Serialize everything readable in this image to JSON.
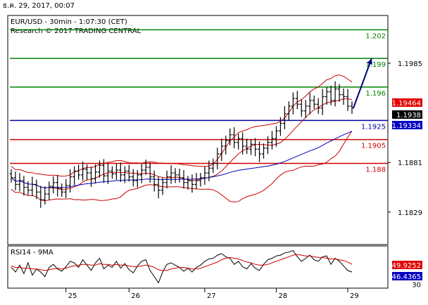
{
  "header": {
    "timestamp": "ธ.ค. 29, 2017, 00:07",
    "instrument_line": "EUR/USD - 30min - 1:07:30 (CET)",
    "research_line": "Research © 2017 TRADING CENTRAL"
  },
  "chart_data": [
    {
      "type": "candlestick",
      "title": "EUR/USD - 30min - 1:07:30 (CET)",
      "ylim": [
        1.1795,
        1.2035
      ],
      "y_ticks": [
        {
          "value": 1.1985,
          "label": "1.1985"
        },
        {
          "value": 1.1881,
          "label": "1.1881"
        },
        {
          "value": 1.1829,
          "label": "1.1829"
        }
      ],
      "x_ticks": [
        {
          "label": "25",
          "index": 13
        },
        {
          "label": "26",
          "index": 28
        },
        {
          "label": "27",
          "index": 46
        },
        {
          "label": "28",
          "index": 63
        },
        {
          "label": "29",
          "index": 80
        }
      ],
      "levels": [
        {
          "value": 1.202,
          "label": "1.202",
          "color": "#008000"
        },
        {
          "value": 1.199,
          "label": "1.199",
          "color": "#008000"
        },
        {
          "value": 1.196,
          "label": "1.196",
          "color": "#008000"
        },
        {
          "value": 1.1925,
          "label": "1.1925",
          "color": "#0000a0"
        },
        {
          "value": 1.1905,
          "label": "1.1905",
          "color": "#cc0000"
        },
        {
          "value": 1.188,
          "label": "1.188",
          "color": "#cc0000"
        }
      ],
      "price_badges": [
        {
          "value": 1.19464,
          "label": "1.19464",
          "bg": "#e00000",
          "fg": "#ffffff"
        },
        {
          "value": 1.1938,
          "label": "1.1938",
          "bg": "#000000",
          "fg": "#ffffff"
        },
        {
          "value": 1.19334,
          "label": "1.19334",
          "bg": "#0000c0",
          "fg": "#ffffff"
        }
      ],
      "projection": {
        "from_index": 81,
        "from_value": 1.1938,
        "to_index": 84,
        "to_value": 1.199,
        "color": "#000080"
      },
      "closes": [
        1.1865,
        1.1858,
        1.1862,
        1.1855,
        1.1852,
        1.1858,
        1.185,
        1.1842,
        1.1848,
        1.1856,
        1.186,
        1.1854,
        1.185,
        1.1857,
        1.1866,
        1.1872,
        1.1868,
        1.1874,
        1.187,
        1.1864,
        1.1871,
        1.1878,
        1.1867,
        1.1872,
        1.1869,
        1.1873,
        1.1868,
        1.1872,
        1.1866,
        1.1862,
        1.1868,
        1.1873,
        1.1876,
        1.1866,
        1.1858,
        1.1852,
        1.186,
        1.1866,
        1.187,
        1.1868,
        1.1865,
        1.186,
        1.1862,
        1.1858,
        1.1862,
        1.1865,
        1.187,
        1.1875,
        1.188,
        1.189,
        1.1898,
        1.1904,
        1.191,
        1.1902,
        1.1906,
        1.1898,
        1.1895,
        1.19,
        1.1895,
        1.189,
        1.1896,
        1.1902,
        1.1906,
        1.1914,
        1.1922,
        1.1932,
        1.194,
        1.1948,
        1.1942,
        1.1935,
        1.194,
        1.1946,
        1.1942,
        1.1938,
        1.195,
        1.1955,
        1.1946,
        1.1958,
        1.1952,
        1.195,
        1.194,
        1.1938
      ]
    },
    {
      "type": "line",
      "title": "RSI14 - 9MA",
      "ylim": [
        25,
        80
      ],
      "y_ticks": [
        {
          "value": 30,
          "label": "30"
        }
      ],
      "price_badges": [
        {
          "value": 49.9252,
          "label": "49.9252",
          "bg": "#e00000",
          "fg": "#ffffff"
        },
        {
          "value": 46.4365,
          "label": "46.4365",
          "bg": "#0000c0",
          "fg": "#ffffff"
        }
      ],
      "series": [
        {
          "color": "#000000",
          "values": [
            52,
            46,
            55,
            44,
            58,
            42,
            50,
            46,
            40,
            52,
            56,
            50,
            47,
            53,
            60,
            58,
            52,
            62,
            55,
            48,
            58,
            64,
            50,
            55,
            52,
            60,
            51,
            57,
            49,
            45,
            54,
            60,
            62,
            48,
            40,
            32,
            46,
            56,
            58,
            55,
            52,
            47,
            51,
            46,
            52,
            55,
            60,
            63,
            64,
            68,
            70,
            66,
            64,
            56,
            60,
            53,
            50,
            57,
            51,
            48,
            56,
            62,
            64,
            67,
            68,
            71,
            72,
            74,
            66,
            60,
            64,
            68,
            62,
            60,
            66,
            67,
            56,
            64,
            60,
            54,
            48,
            46
          ]
        },
        {
          "color": "#cc0000",
          "values": [
            54,
            52,
            52,
            51,
            51,
            50,
            50,
            49,
            48,
            49,
            50,
            51,
            50,
            51,
            53,
            54,
            55,
            56,
            56,
            55,
            55,
            57,
            56,
            56,
            55,
            56,
            55,
            55,
            54,
            53,
            53,
            54,
            55,
            54,
            52,
            49,
            48,
            48,
            50,
            51,
            52,
            52,
            51,
            50,
            50,
            51,
            53,
            55,
            57,
            59,
            62,
            64,
            65,
            64,
            63,
            61,
            59,
            58,
            56,
            55,
            55,
            56,
            58,
            60,
            62,
            64,
            66,
            68,
            69,
            68,
            67,
            67,
            66,
            65,
            65,
            64,
            63,
            63,
            62,
            61,
            59,
            56
          ]
        }
      ]
    }
  ]
}
